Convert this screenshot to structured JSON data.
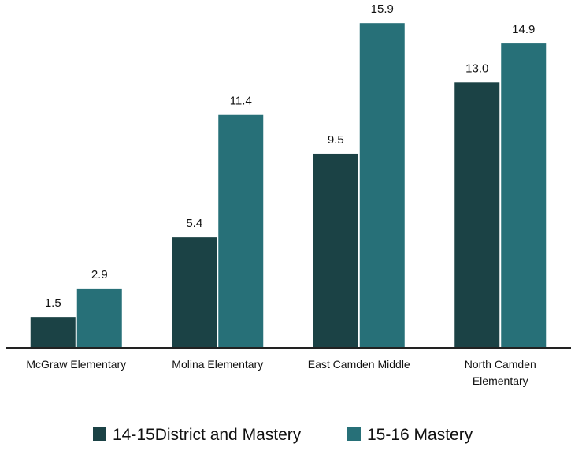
{
  "chart_data": {
    "type": "bar",
    "categories": [
      [
        "McGraw Elementary"
      ],
      [
        "Molina Elementary"
      ],
      [
        "East Camden Middle"
      ],
      [
        "North Camden",
        "Elementary"
      ]
    ],
    "series": [
      {
        "name": "14-15District and Mastery",
        "values": [
          1.5,
          5.4,
          9.5,
          13.0
        ],
        "color": "#1b4245"
      },
      {
        "name": "15-16 Mastery",
        "values": [
          2.9,
          11.4,
          15.9,
          14.9
        ],
        "color": "#277078"
      }
    ],
    "value_labels": [
      [
        "1.5",
        "5.4",
        "9.5",
        "13.0"
      ],
      [
        "2.9",
        "11.4",
        "15.9",
        "14.9"
      ]
    ],
    "ylim": [
      0,
      17
    ],
    "grid": false,
    "legend_position": "bottom-center",
    "axis_color": "#222222"
  }
}
